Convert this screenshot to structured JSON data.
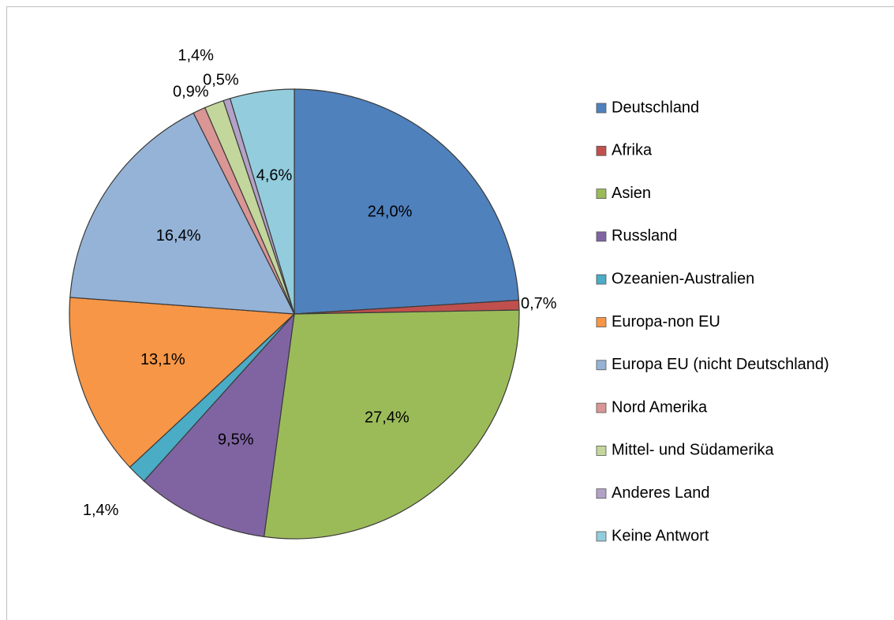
{
  "chart_data": {
    "type": "pie",
    "categories": [
      "Deutschland",
      "Afrika",
      "Asien",
      "Russland",
      "Ozeanien-Australien",
      "Europa-non EU",
      "Europa EU (nicht Deutschland)",
      "Nord Amerika",
      "Mittel- und Südamerika",
      "Anderes Land",
      "Keine Antwort"
    ],
    "values": [
      24.0,
      0.7,
      27.4,
      9.5,
      1.4,
      13.1,
      16.4,
      0.9,
      1.4,
      0.5,
      4.6
    ],
    "value_labels": [
      "24,0%",
      "0,7%",
      "27,4%",
      "9,5%",
      "1,4%",
      "13,1%",
      "16,4%",
      "0,9%",
      "1,4%",
      "0,5%",
      "4,6%"
    ],
    "colors": [
      "#4f81bd",
      "#c0504d",
      "#9bbb59",
      "#8064a2",
      "#4bacc6",
      "#f79646",
      "#95b3d7",
      "#d99694",
      "#c3d69b",
      "#b3a2c7",
      "#93cddd"
    ],
    "legend": "right"
  }
}
